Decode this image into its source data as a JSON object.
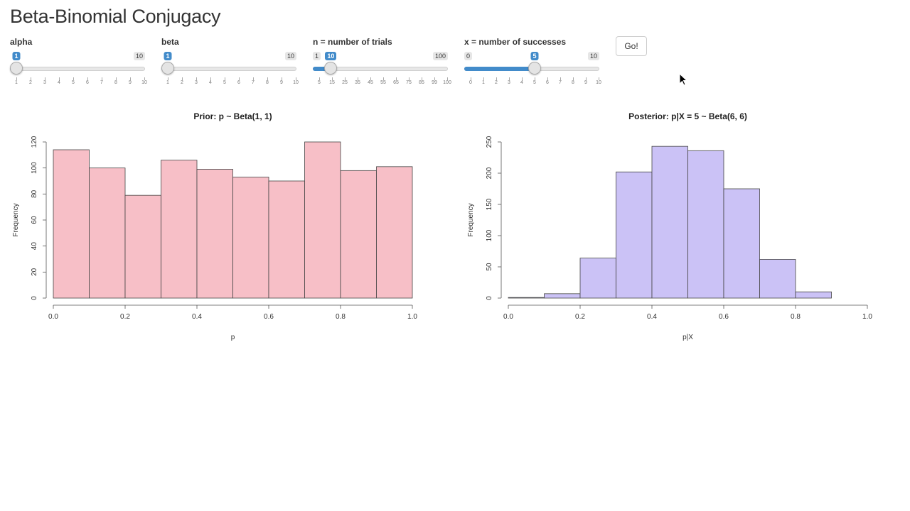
{
  "title": "Beta-Binomial Conjugacy",
  "sliders": [
    {
      "label": "alpha",
      "min": 1,
      "max": 10,
      "value": 1,
      "ticks": [
        "1",
        "2",
        "3",
        "4",
        "5",
        "6",
        "7",
        "8",
        "9",
        "10"
      ]
    },
    {
      "label": "beta",
      "min": 1,
      "max": 10,
      "value": 1,
      "ticks": [
        "1",
        "2",
        "3",
        "4",
        "5",
        "6",
        "7",
        "8",
        "9",
        "10"
      ]
    },
    {
      "label": "n = number of trials",
      "min": 1,
      "max": 100,
      "value": 10,
      "ticks": [
        "5",
        "15",
        "25",
        "35",
        "45",
        "55",
        "65",
        "75",
        "85",
        "99",
        "100"
      ]
    },
    {
      "label": "x = number of successes",
      "min": 0,
      "max": 10,
      "value": 5,
      "ticks": [
        "0",
        "1",
        "2",
        "3",
        "4",
        "5",
        "6",
        "7",
        "8",
        "9",
        "10"
      ]
    }
  ],
  "go_label": "Go!",
  "colors": {
    "accent": "#428bca",
    "prior_fill": "#f7bfc7",
    "posterior_fill": "#cbc2f6"
  },
  "chart_data": [
    {
      "type": "bar",
      "title": "Prior: p ~ Beta(1, 1)",
      "xlabel": "p",
      "ylabel": "Frequency",
      "bin_edges": [
        0.0,
        0.1,
        0.2,
        0.3,
        0.4,
        0.5,
        0.6,
        0.7,
        0.8,
        0.9,
        1.0
      ],
      "values": [
        114,
        100,
        79,
        106,
        99,
        93,
        90,
        120,
        98,
        101
      ],
      "xlim": [
        0,
        1
      ],
      "ylim": [
        0,
        120
      ],
      "xticks": [
        "0.0",
        "0.2",
        "0.4",
        "0.6",
        "0.8",
        "1.0"
      ],
      "yticks": [
        "0",
        "20",
        "40",
        "60",
        "80",
        "100",
        "120"
      ]
    },
    {
      "type": "bar",
      "title": "Posterior: p|X = 5 ~ Beta(6, 6)",
      "xlabel": "p|X",
      "ylabel": "Frequency",
      "bin_edges": [
        0.0,
        0.1,
        0.2,
        0.3,
        0.4,
        0.5,
        0.6,
        0.7,
        0.8,
        0.9
      ],
      "values": [
        1,
        7,
        64,
        202,
        243,
        236,
        175,
        62,
        10
      ],
      "xlim": [
        0,
        1
      ],
      "ylim": [
        0,
        250
      ],
      "xticks": [
        "0.0",
        "0.2",
        "0.4",
        "0.6",
        "0.8",
        "1.0"
      ],
      "yticks": [
        "0",
        "50",
        "100",
        "150",
        "200",
        "250"
      ]
    }
  ]
}
